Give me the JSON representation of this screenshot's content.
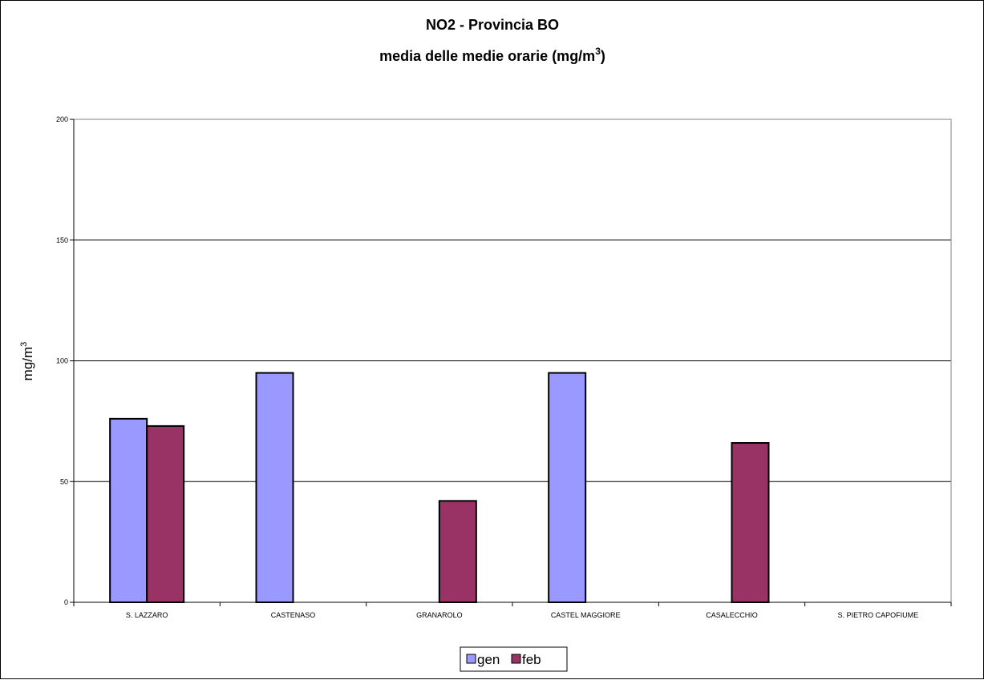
{
  "chart_data": {
    "type": "bar",
    "title": "NO2 - Provincia BO",
    "subtitle_main": "media delle medie orarie (mg/m",
    "subtitle_sup": "3",
    "subtitle_end": ")",
    "ylabel_main": "mg/m",
    "ylabel_sup": "3",
    "xlabel": "",
    "ylim": [
      0,
      200
    ],
    "yticks": [
      "0",
      "50",
      "100",
      "150",
      "200"
    ],
    "ytick_values": [
      0,
      50,
      100,
      150,
      200
    ],
    "grid": true,
    "legend_position": "bottom-center",
    "categories": [
      "S. LAZZARO",
      "CASTENASO",
      "GRANAROLO",
      "CASTEL MAGGIORE",
      "CASALECCHIO",
      "S. PIETRO CAPOFIUME"
    ],
    "series": [
      {
        "name": "gen",
        "color": "#9999ff",
        "values": [
          76,
          95,
          null,
          95,
          null,
          null
        ]
      },
      {
        "name": "feb",
        "color": "#993366",
        "values": [
          73,
          null,
          42,
          null,
          66,
          null
        ]
      }
    ]
  }
}
